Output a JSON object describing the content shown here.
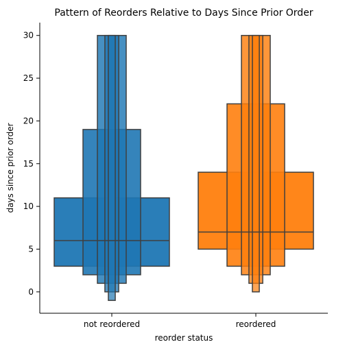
{
  "chart_data": {
    "type": "boxen",
    "title": "Pattern of Reorders Relative to Days Since Prior Order",
    "xlabel": "reorder status",
    "ylabel": "days since prior order",
    "categories": [
      "not reordered",
      "reordered"
    ],
    "ylim": [
      -2.5,
      31.5
    ],
    "yticks": [
      0,
      5,
      10,
      15,
      20,
      25,
      30
    ],
    "grid": false,
    "series": [
      {
        "category": "not reordered",
        "color": "#1f77b4",
        "median": 6,
        "levels": [
          {
            "low": 3,
            "high": 11,
            "opacity": 0.95
          },
          {
            "low": 2,
            "high": 19,
            "opacity": 0.9
          },
          {
            "low": 1,
            "high": 30,
            "opacity": 0.82
          },
          {
            "low": 0,
            "high": 30,
            "opacity": 0.75
          },
          {
            "low": -1,
            "high": 30,
            "opacity": 0.7
          }
        ]
      },
      {
        "category": "reordered",
        "color": "#ff7f0e",
        "median": 7,
        "levels": [
          {
            "low": 5,
            "high": 14,
            "opacity": 0.95
          },
          {
            "low": 3,
            "high": 22,
            "opacity": 0.9
          },
          {
            "low": 2,
            "high": 30,
            "opacity": 0.82
          },
          {
            "low": 1,
            "high": 30,
            "opacity": 0.75
          },
          {
            "low": 0,
            "high": 30,
            "opacity": 0.7
          }
        ]
      }
    ]
  }
}
